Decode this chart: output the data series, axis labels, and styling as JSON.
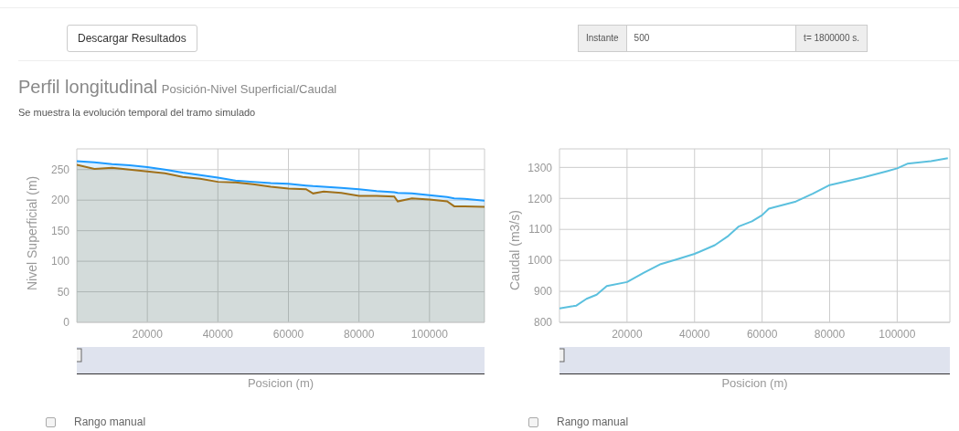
{
  "chart_data": [
    {
      "type": "area",
      "title": "Perfil longitudinal",
      "subtitle": "Posición-Nivel Superficial/Caudal",
      "annotations": [
        "Se muestra la evolución temporal del tramo simulado",
        "Descargar Resultados",
        "Instante",
        "500",
        "t= 1800000 s.",
        "Rango manual"
      ],
      "xlabel": "Posicion (m)",
      "ylabel": "Nivel Superficial (m)",
      "x": [
        0,
        5000,
        10000,
        15000,
        20000,
        25000,
        30000,
        35000,
        40000,
        45000,
        50000,
        55000,
        60000,
        65000,
        67000,
        70000,
        75000,
        80000,
        85000,
        90000,
        91000,
        95000,
        100000,
        105000,
        107000,
        110000,
        115600
      ],
      "series": [
        {
          "color": "#1e9bff",
          "values": [
            264,
            262,
            259,
            257,
            254,
            250,
            245,
            241,
            237,
            232,
            230,
            228,
            227,
            224,
            223,
            222,
            220,
            218,
            215,
            213,
            212,
            211,
            208,
            205,
            203,
            202,
            199
          ]
        },
        {
          "color": "#a0701a",
          "values": [
            258,
            251,
            253,
            250,
            247,
            244,
            238,
            235,
            230,
            229,
            226,
            222,
            219,
            218,
            211,
            214,
            212,
            207,
            207,
            206,
            198,
            203,
            201,
            198,
            190,
            190,
            189
          ]
        }
      ],
      "xlim": [
        0,
        115600
      ],
      "xticks": [
        {
          "value": 0,
          "label": null
        },
        20000,
        40000,
        60000,
        80000,
        100000
      ],
      "ylim": [
        0,
        284
      ],
      "yticks": [
        0,
        50,
        100,
        150,
        200,
        250
      ],
      "grid": true,
      "legend": false,
      "marker": "none"
    },
    {
      "type": "line",
      "annotations": [
        "Rango manual"
      ],
      "xlabel": "Posicion (m)",
      "ylabel": "Caudal (m3/s)",
      "x": [
        0,
        4000,
        5000,
        8000,
        11000,
        14000,
        20000,
        25000,
        30000,
        35000,
        40000,
        46000,
        50000,
        53000,
        57000,
        60000,
        62000,
        70000,
        75000,
        80000,
        90000,
        97000,
        100000,
        103000,
        110000,
        115000
      ],
      "series": [
        {
          "color": "#5bc0de",
          "values": [
            845,
            852,
            854,
            876,
            889,
            917,
            930,
            960,
            988,
            1004,
            1021,
            1049,
            1079,
            1109,
            1126,
            1146,
            1167,
            1190,
            1215,
            1243,
            1268,
            1288,
            1297,
            1312,
            1320,
            1330
          ]
        }
      ],
      "xlim": [
        0,
        115600
      ],
      "xticks": [
        {
          "value": 0,
          "label": null
        },
        20000,
        40000,
        60000,
        80000,
        100000
      ],
      "ylim": [
        800,
        1360
      ],
      "yticks": [
        800,
        900,
        1000,
        1100,
        1200,
        1300
      ],
      "grid": true,
      "legend": false,
      "marker": "none"
    }
  ]
}
